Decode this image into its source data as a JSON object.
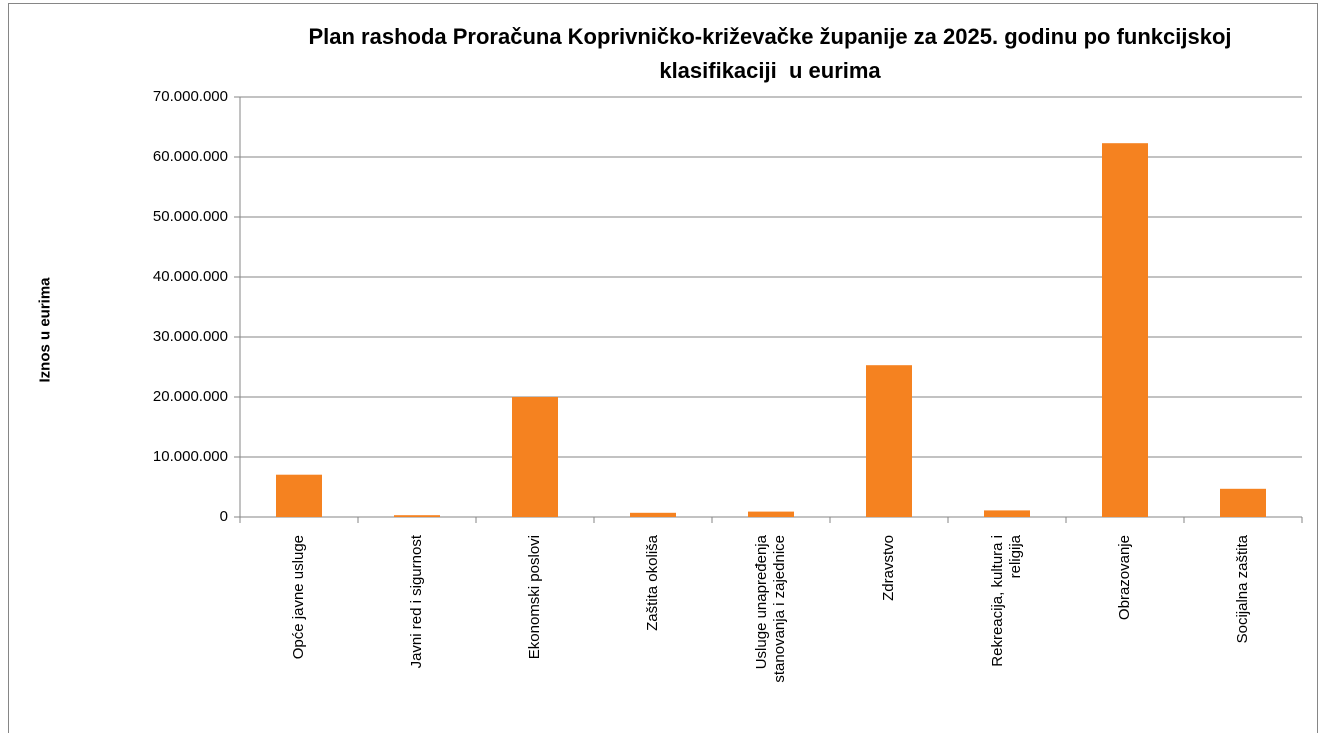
{
  "chart_data": {
    "type": "bar",
    "title": "Plan rashoda Proračuna Koprivničko-križevačke županije za 2025. godinu po funkcijskoj klasifikaciji  u eurima",
    "y_label": "Iznos u eurima",
    "categories": [
      "Opće javne usluge",
      "Javni red i sigurnost",
      "Ekonomski poslovi",
      "Zaštita okoliša",
      "Usluge unapređenja stanovanja i zajednice",
      "Zdravstvo",
      "Rekreacija, kultura i religija",
      "Obrazovanje",
      "Socijalna zaštita"
    ],
    "values": [
      7050000,
      300000,
      20000000,
      700000,
      900000,
      25300000,
      1100000,
      62300000,
      4700000
    ],
    "color": "#f58220",
    "ylim": [
      0,
      70000000
    ],
    "yticks": [
      0,
      {
        "value": 10000000,
        "label": "10.000.000"
      },
      {
        "value": 20000000,
        "label": "20.000.000"
      },
      {
        "value": 30000000,
        "label": "30.000.000"
      },
      {
        "value": 40000000,
        "label": "40.000.000"
      },
      {
        "value": 50000000,
        "label": "50.000.000"
      },
      {
        "value": 60000000,
        "label": "60.000.000"
      },
      {
        "value": 70000000,
        "label": "70.000.000"
      }
    ],
    "grid": true
  }
}
